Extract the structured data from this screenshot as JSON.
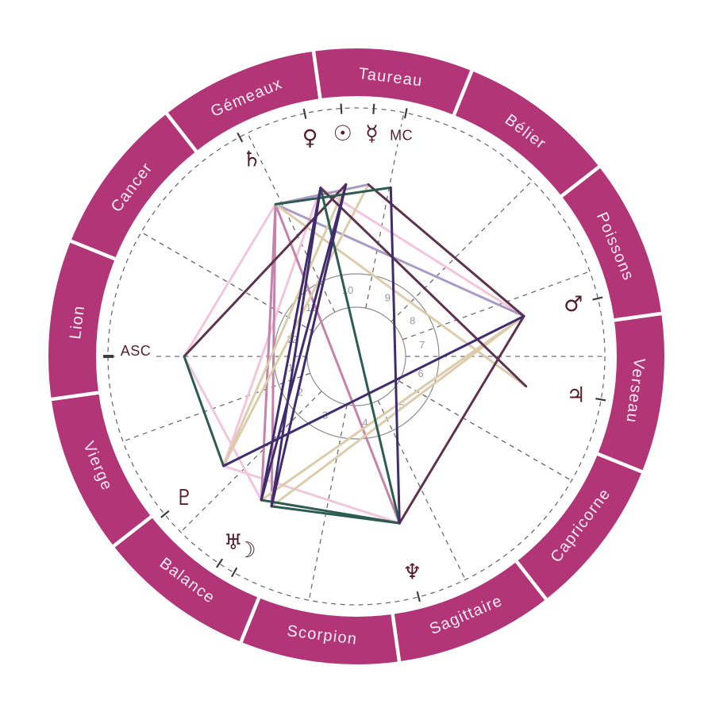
{
  "chart": {
    "background": "#ffffff",
    "ring": {
      "color": "#b23578",
      "label_color": "#f7ecf3",
      "separator_color": "#ffffff"
    },
    "glyph_color": "#541f2b",
    "dash_color": "#6d6d6d",
    "circle_color": "#8d8d8d",
    "house_number_color": "#989898",
    "tick_color": "#3e3e3e",
    "signs": [
      {
        "key": "belier",
        "label": "Bélier",
        "angle": 53
      },
      {
        "key": "taureau",
        "label": "Taureau",
        "angle": 83
      },
      {
        "key": "gemeaux",
        "label": "Gémeaux",
        "angle": 113
      },
      {
        "key": "cancer",
        "label": "Cancer",
        "angle": 143
      },
      {
        "key": "lion",
        "label": "Lion",
        "angle": 173
      },
      {
        "key": "vierge",
        "label": "Vierge",
        "angle": 203
      },
      {
        "key": "balance",
        "label": "Balance",
        "angle": 233
      },
      {
        "key": "scorpion",
        "label": "Scorpion",
        "angle": 263
      },
      {
        "key": "sagittaire",
        "label": "Sagittaire",
        "angle": 293
      },
      {
        "key": "capricorne",
        "label": "Capricorne",
        "angle": 323
      },
      {
        "key": "verseau",
        "label": "Verseau",
        "angle": 353
      },
      {
        "key": "poissons",
        "label": "Poissons",
        "angle": 23
      }
    ],
    "planets": [
      {
        "key": "venus",
        "glyph": "♀",
        "angle": 102,
        "type": "glyph"
      },
      {
        "key": "sun",
        "glyph": "☉",
        "angle": 93.5,
        "type": "glyph"
      },
      {
        "key": "mercury",
        "glyph": "☿",
        "angle": 86,
        "type": "glyph"
      },
      {
        "key": "mc",
        "glyph": "MC",
        "angle": 78.5,
        "type": "text"
      },
      {
        "key": "saturn",
        "glyph": "♄",
        "angle": 118,
        "type": "glyph"
      },
      {
        "key": "mars",
        "glyph": "♂",
        "angle": 13.5,
        "type": "glyph"
      },
      {
        "key": "jupiter",
        "glyph": "♃",
        "angle": 350,
        "type": "glyph"
      },
      {
        "key": "neptune",
        "glyph": "♆",
        "angle": 284.5,
        "type": "glyph"
      },
      {
        "key": "moon",
        "glyph": "☽",
        "angle": 240.5,
        "type": "glyph"
      },
      {
        "key": "uranus",
        "glyph": "♅",
        "angle": 236.5,
        "type": "glyph"
      },
      {
        "key": "pluto",
        "glyph": "♇",
        "angle": 219.5,
        "type": "glyph"
      },
      {
        "key": "asc",
        "glyph": "ASC",
        "angle": 180,
        "type": "text"
      }
    ],
    "houses": [
      {
        "number": "1",
        "angle": 190
      },
      {
        "number": "2",
        "angle": 212.5
      },
      {
        "number": "3",
        "angle": 242
      },
      {
        "number": "4",
        "angle": 277.5
      },
      {
        "number": "5",
        "angle": 313
      },
      {
        "number": "6",
        "angle": 345
      },
      {
        "number": "7",
        "angle": 10
      },
      {
        "number": "8",
        "angle": 32.5
      },
      {
        "number": "9",
        "angle": 62
      },
      {
        "number": "10",
        "angle": 97.5
      },
      {
        "number": "11",
        "angle": 133
      },
      {
        "number": "12",
        "angle": 165
      }
    ],
    "house_cusps": [
      0,
      20,
      45,
      79,
      116,
      150,
      180,
      200,
      225,
      259,
      296,
      330
    ],
    "aspect_colors": {
      "pink": "#f2c6da",
      "rose": "#c583ac",
      "mauve": "#a99bc7",
      "beige": "#ddccab",
      "maroon": "#5e3350",
      "teal": "#2d5c50",
      "indigo": "#3f2d6e"
    },
    "aspects": [
      {
        "from": "asc",
        "to": "saturn",
        "color": "pink"
      },
      {
        "from": "venus",
        "to": "mars",
        "color": "pink"
      },
      {
        "from": "venus",
        "to": "pluto",
        "color": "pink"
      },
      {
        "from": "pluto",
        "to": "neptune",
        "color": "pink"
      },
      {
        "from": "asc",
        "to": "uranus",
        "color": "pink"
      },
      {
        "from": "saturn",
        "to": "uranus",
        "color": "rose"
      },
      {
        "from": "saturn",
        "to": "moon",
        "color": "rose"
      },
      {
        "from": "saturn",
        "to": "neptune",
        "color": "rose"
      },
      {
        "from": "saturn",
        "to": "mercury",
        "color": "mauve"
      },
      {
        "from": "saturn",
        "to": "mars",
        "color": "mauve"
      },
      {
        "from": "sun",
        "to": "pluto",
        "color": "beige"
      },
      {
        "from": "mercury",
        "to": "pluto",
        "color": "beige"
      },
      {
        "from": "saturn",
        "to": "jupiter",
        "color": "beige"
      },
      {
        "from": "uranus",
        "to": "mars",
        "color": "beige"
      },
      {
        "from": "moon",
        "to": "mars",
        "color": "beige"
      },
      {
        "from": "asc",
        "to": "sun",
        "color": "maroon"
      },
      {
        "from": "venus",
        "to": "jupiter",
        "color": "maroon"
      },
      {
        "from": "mars",
        "to": "neptune",
        "color": "maroon"
      },
      {
        "from": "mercury",
        "to": "mars",
        "color": "maroon"
      },
      {
        "from": "saturn",
        "to": "mc",
        "color": "teal"
      },
      {
        "from": "asc",
        "to": "pluto",
        "color": "teal"
      },
      {
        "from": "uranus",
        "to": "neptune",
        "color": "teal"
      },
      {
        "from": "moon",
        "to": "neptune",
        "color": "teal"
      },
      {
        "from": "venus",
        "to": "neptune",
        "color": "teal"
      },
      {
        "from": "pluto",
        "to": "mars",
        "color": "indigo"
      },
      {
        "from": "mc",
        "to": "neptune",
        "color": "indigo"
      },
      {
        "from": "venus",
        "to": "uranus",
        "color": "indigo"
      },
      {
        "from": "venus",
        "to": "moon",
        "color": "indigo"
      },
      {
        "from": "sun",
        "to": "uranus",
        "color": "indigo"
      },
      {
        "from": "sun",
        "to": "moon",
        "color": "indigo"
      }
    ]
  }
}
